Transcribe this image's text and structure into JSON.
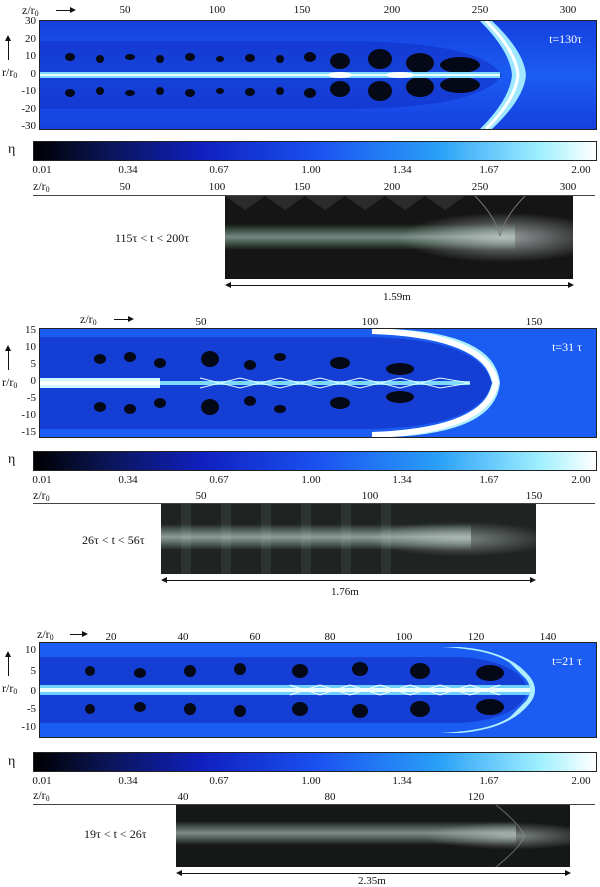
{
  "axis_z_label": "z/r",
  "axis_z_sub": "0",
  "axis_r_label": "r/r",
  "axis_r_sub": "0",
  "eta_label": "η",
  "colorbar_ticks": [
    "0.01",
    "0.34",
    "0.67",
    "1.00",
    "1.34",
    "1.67",
    "2.00"
  ],
  "panels": [
    {
      "time_label": "t=130τ",
      "sim_z_ticks": [
        "50",
        "100",
        "150",
        "200",
        "250",
        "300"
      ],
      "sim_r_ticks": [
        "30",
        "20",
        "10",
        "0",
        "-10",
        "-20",
        "-30"
      ],
      "exp_z_ticks": [
        "50",
        "100",
        "150",
        "200",
        "250",
        "300"
      ],
      "exp_time_label": "115τ < t < 200τ",
      "length_label": "1.59m"
    },
    {
      "time_label": "t=31 τ",
      "sim_z_ticks": [
        "50",
        "100",
        "150"
      ],
      "sim_r_ticks": [
        "15",
        "10",
        "5",
        "0",
        "-5",
        "-10",
        "-15"
      ],
      "exp_z_ticks": [
        "50",
        "100",
        "150"
      ],
      "exp_time_label": "26τ < t < 56τ",
      "length_label": "1.76m"
    },
    {
      "time_label": "t=21 τ",
      "sim_z_ticks": [
        "20",
        "40",
        "60",
        "80",
        "100",
        "120",
        "140"
      ],
      "sim_r_ticks": [
        "10",
        "5",
        "0",
        "-5",
        "-10"
      ],
      "exp_z_ticks": [
        "40",
        "80",
        "120"
      ],
      "exp_time_label": "19τ < t < 26τ",
      "length_label": "2.35m"
    }
  ]
}
